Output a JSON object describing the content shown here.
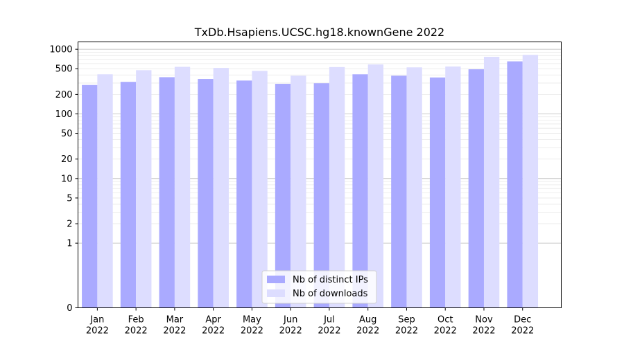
{
  "chart_data": {
    "type": "bar",
    "title": "TxDb.Hsapiens.UCSC.hg18.knownGene 2022",
    "xlabel": "",
    "ylabel": "",
    "categories": [
      [
        "Jan",
        "2022"
      ],
      [
        "Feb",
        "2022"
      ],
      [
        "Mar",
        "2022"
      ],
      [
        "Apr",
        "2022"
      ],
      [
        "May",
        "2022"
      ],
      [
        "Jun",
        "2022"
      ],
      [
        "Jul",
        "2022"
      ],
      [
        "Aug",
        "2022"
      ],
      [
        "Sep",
        "2022"
      ],
      [
        "Oct",
        "2022"
      ],
      [
        "Nov",
        "2022"
      ],
      [
        "Dec",
        "2022"
      ]
    ],
    "series": [
      {
        "name": "Nb of distinct IPs",
        "color": "#aaaaff",
        "values": [
          280,
          313,
          370,
          347,
          328,
          292,
          298,
          410,
          390,
          366,
          490,
          650
        ]
      },
      {
        "name": "Nb of downloads",
        "color": "#ddddff",
        "values": [
          410,
          475,
          535,
          515,
          463,
          390,
          530,
          582,
          525,
          540,
          765,
          820
        ]
      }
    ],
    "yscale": "symlog",
    "yticks": [
      0,
      1,
      2,
      5,
      10,
      20,
      50,
      100,
      200,
      500,
      1000
    ],
    "ylim": [
      0,
      1300
    ],
    "grid": true,
    "legend_position": "lower-center"
  }
}
